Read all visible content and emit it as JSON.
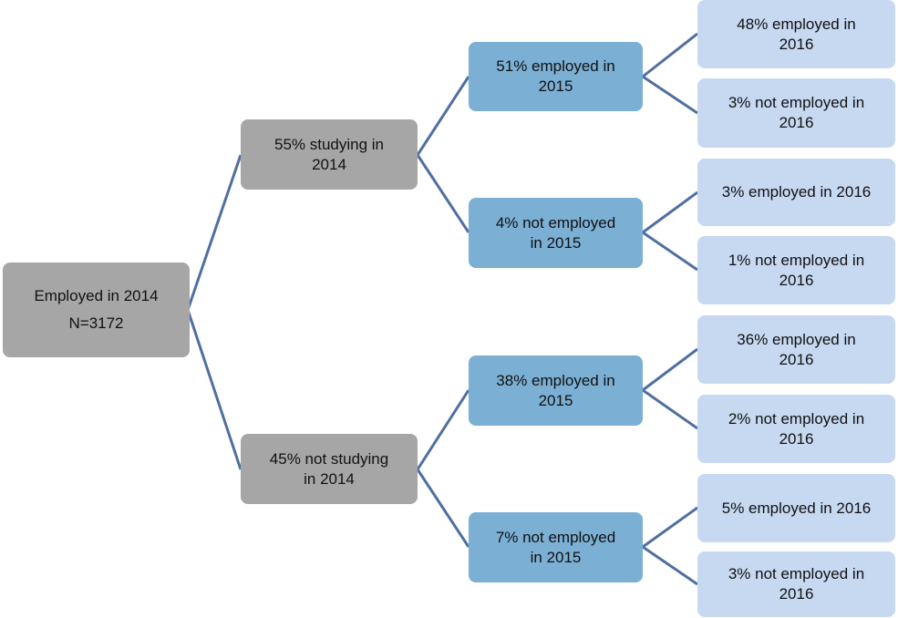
{
  "nodes": [
    {
      "lines": [
        "Employed in 2014",
        "N=3172"
      ]
    },
    {
      "lines": [
        "55% studying in",
        "2014"
      ]
    },
    {
      "lines": [
        "45% not studying",
        "in 2014"
      ]
    },
    {
      "lines": [
        "51% employed in",
        "2015"
      ]
    },
    {
      "lines": [
        "4% not employed",
        "in 2015"
      ]
    },
    {
      "lines": [
        "38% employed in",
        "2015"
      ]
    },
    {
      "lines": [
        "7% not employed",
        "in 2015"
      ]
    },
    {
      "lines": [
        "48% employed in",
        "2016"
      ]
    },
    {
      "lines": [
        "3% not employed in",
        "2016"
      ]
    },
    {
      "lines": [
        "3% employed in 2016"
      ]
    },
    {
      "lines": [
        "1% not employed in",
        "2016"
      ]
    },
    {
      "lines": [
        "36% employed in",
        "2016"
      ]
    },
    {
      "lines": [
        "2% not employed in",
        "2016"
      ]
    },
    {
      "lines": [
        "5% employed in 2016"
      ]
    },
    {
      "lines": [
        "3% not employed in",
        "2016"
      ]
    }
  ]
}
